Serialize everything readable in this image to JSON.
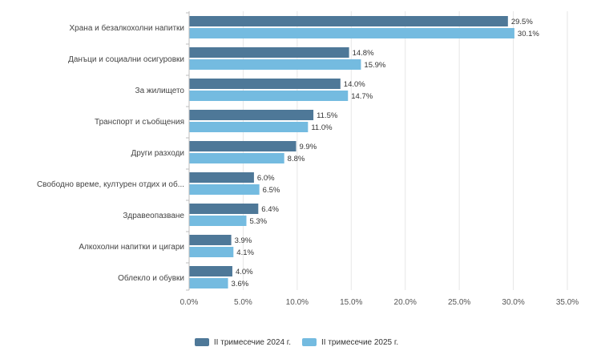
{
  "chart_data": {
    "type": "bar",
    "orientation": "horizontal",
    "categories": [
      "Храна и безалкохолни напитки",
      "Данъци и социални осигуровки",
      "За жилището",
      "Транспорт и съобщения",
      "Други разходи",
      "Свободно време, културен отдих и об...",
      "Здравеопазване",
      "Алкохолни напитки и цигари",
      "Облекло и обувки"
    ],
    "series": [
      {
        "name": "II тримесечие 2024 г.",
        "color": "#4e7898",
        "values": [
          29.5,
          14.8,
          14.0,
          11.5,
          9.9,
          6.0,
          6.4,
          3.9,
          4.0
        ],
        "labels": [
          "29.5%",
          "14.8%",
          "14.0%",
          "11.5%",
          "9.9%",
          "6.0%",
          "6.4%",
          "3.9%",
          "4.0%"
        ]
      },
      {
        "name": "II тримесечие 2025 г.",
        "color": "#74bbe0",
        "values": [
          30.1,
          15.9,
          14.7,
          11.0,
          8.8,
          6.5,
          5.3,
          4.1,
          3.6
        ],
        "labels": [
          "30.1%",
          "15.9%",
          "14.7%",
          "11.0%",
          "8.8%",
          "6.5%",
          "5.3%",
          "4.1%",
          "3.6%"
        ]
      }
    ],
    "xlim": [
      0,
      35
    ],
    "xticks": [
      0,
      5,
      10,
      15,
      20,
      25,
      30,
      35
    ],
    "xtick_labels": [
      "0.0%",
      "5.0%",
      "10.0%",
      "15.0%",
      "20.0%",
      "25.0%",
      "30.0%",
      "35.0%"
    ],
    "title": "",
    "xlabel": "",
    "ylabel": "",
    "grid": true,
    "legend_position": "bottom-center"
  }
}
